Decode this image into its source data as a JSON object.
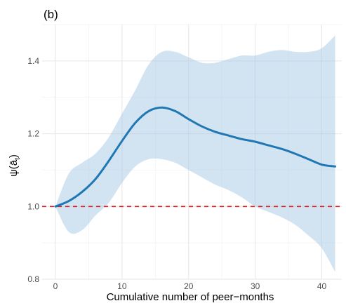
{
  "chart_data": {
    "type": "line",
    "panel_label": "(b)",
    "xlabel": "Cumulative number of peer−months",
    "ylabel": "ψ(ā",
    "ylabel_sub": "t",
    "ylabel_close": ")",
    "xlim": [
      -2,
      43
    ],
    "ylim": [
      0.8,
      1.5
    ],
    "xticks": [
      0,
      10,
      20,
      30,
      40
    ],
    "yticks": [
      0.8,
      1.0,
      1.2,
      1.4
    ],
    "ytick_labels": [
      "0.8",
      "1.0",
      "1.2",
      "1.4"
    ],
    "grid": true,
    "reference_line": {
      "y": 1.0,
      "color": "#e41a1c",
      "style": "dashed"
    },
    "series": [
      {
        "color": "#1f78b4",
        "band_color": "#a6c8e5",
        "x": [
          0,
          2,
          4,
          6,
          8,
          10,
          12,
          14,
          16,
          18,
          20,
          22,
          24,
          26,
          28,
          30,
          32,
          34,
          36,
          38,
          40,
          42
        ],
        "y": [
          1.0,
          1.015,
          1.04,
          1.075,
          1.125,
          1.18,
          1.23,
          1.262,
          1.272,
          1.262,
          1.24,
          1.22,
          1.205,
          1.195,
          1.185,
          1.178,
          1.168,
          1.158,
          1.145,
          1.13,
          1.115,
          1.11
        ],
        "lower": [
          1.0,
          0.93,
          0.935,
          0.975,
          1.01,
          1.065,
          1.11,
          1.13,
          1.13,
          1.12,
          1.1,
          1.08,
          1.06,
          1.045,
          1.025,
          1.0,
          0.985,
          0.97,
          0.95,
          0.92,
          0.885,
          0.82
        ],
        "upper": [
          1.0,
          1.09,
          1.12,
          1.145,
          1.19,
          1.255,
          1.32,
          1.39,
          1.425,
          1.425,
          1.41,
          1.395,
          1.395,
          1.405,
          1.415,
          1.415,
          1.425,
          1.43,
          1.425,
          1.425,
          1.435,
          1.47
        ]
      }
    ]
  }
}
